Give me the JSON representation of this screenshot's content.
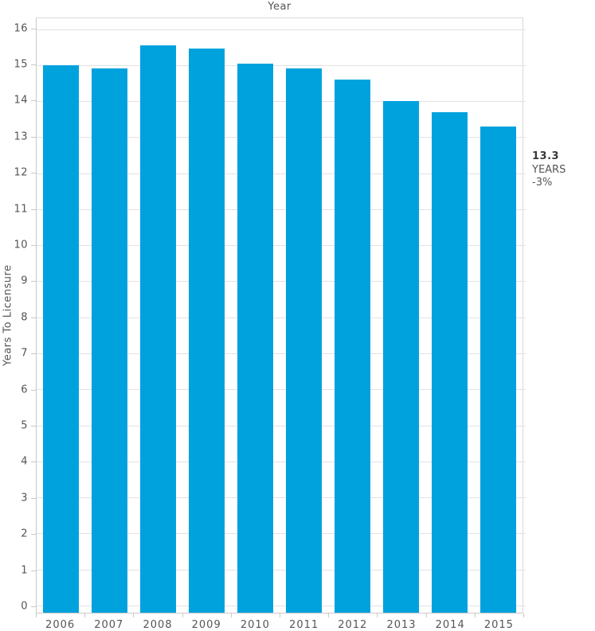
{
  "title": "Year",
  "y_axis": {
    "label": "Years To Licensure"
  },
  "annotation": {
    "value": "13.3",
    "unit": "YEARS",
    "change": "-3%"
  },
  "colors": {
    "bar": "#00a2de",
    "gridline": "#e2e2e2",
    "plot_border": "#d9d9d9",
    "axis_line": "#c9c9c9",
    "text": "#555555",
    "annotation_value": "#383838"
  },
  "chart_data": {
    "type": "bar",
    "title": "Year",
    "xlabel": "Year",
    "ylabel": "Years To Licensure",
    "categories": [
      "2006",
      "2007",
      "2008",
      "2009",
      "2010",
      "2011",
      "2012",
      "2013",
      "2014",
      "2015"
    ],
    "values": [
      15.0,
      14.9,
      15.55,
      15.45,
      15.05,
      14.9,
      14.6,
      14.0,
      13.7,
      13.3
    ],
    "ylim": [
      -0.2,
      16.3
    ],
    "yticks": [
      0,
      1,
      2,
      3,
      4,
      5,
      6,
      7,
      8,
      9,
      10,
      11,
      12,
      13,
      14,
      15,
      16
    ],
    "bar_band_fill": 0.75,
    "grid": true,
    "legend": false,
    "annotation": {
      "text": "13.3 YEARS -3%",
      "target_category": "2015"
    }
  }
}
